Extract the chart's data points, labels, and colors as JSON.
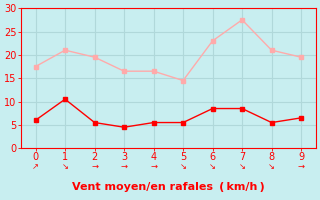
{
  "x": [
    0,
    1,
    2,
    3,
    4,
    5,
    6,
    7,
    8,
    9
  ],
  "wind_mean": [
    6,
    10.5,
    5.5,
    4.5,
    5.5,
    5.5,
    8.5,
    8.5,
    5.5,
    6.5
  ],
  "wind_gust": [
    17.5,
    21,
    19.5,
    16.5,
    16.5,
    14.5,
    23,
    27.5,
    21,
    19.5
  ],
  "wind_dirs": [
    "↗",
    "↘",
    "→",
    "→",
    "→",
    "↘",
    "↘",
    "↘",
    "↘",
    "→"
  ],
  "mean_color": "#ff0000",
  "gust_color": "#ffaaaa",
  "bg_color": "#c8eef0",
  "grid_color": "#b0d8da",
  "xlabel": "Vent moyen/en rafales  ( km/h )",
  "xlabel_color": "#ff0000",
  "ylim": [
    0,
    30
  ],
  "xlim": [
    -0.5,
    9.5
  ],
  "yticks": [
    0,
    5,
    10,
    15,
    20,
    25,
    30
  ],
  "xticks": [
    0,
    1,
    2,
    3,
    4,
    5,
    6,
    7,
    8,
    9
  ],
  "tick_color": "#ff0000",
  "tick_fontsize": 7,
  "xlabel_fontsize": 8
}
